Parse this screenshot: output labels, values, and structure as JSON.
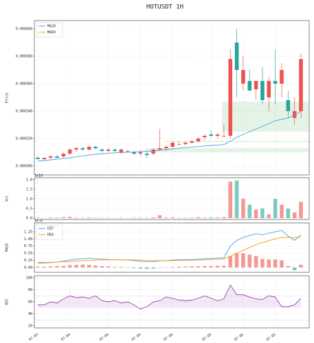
{
  "chart_data": [
    {
      "type": "candlestick",
      "title": "HOTUSDT  1H",
      "ylabel": "Price",
      "up_color": "#ef5350",
      "down_color": "#26a69a",
      "ylim": [
        0.0002935,
        0.000406
      ],
      "yticks": [
        {
          "value": 0.0003,
          "label": "0.000300"
        },
        {
          "value": 0.00032,
          "label": "0.000320"
        },
        {
          "value": 0.00034,
          "label": "0.000340"
        },
        {
          "value": 0.00036,
          "label": "0.000360"
        },
        {
          "value": 0.00038,
          "label": "0.000380"
        },
        {
          "value": 0.0004,
          "label": "0.000400"
        }
      ],
      "grid": true,
      "legend": "upper left",
      "ohlc": [
        [
          0.000306,
          0.000307,
          0.000305,
          0.000305
        ],
        [
          0.000305,
          0.000306,
          0.000304,
          0.000306
        ],
        [
          0.000306,
          0.000308,
          0.000305,
          0.000307
        ],
        [
          0.000307,
          0.000308,
          0.000306,
          0.000306
        ],
        [
          0.000307,
          0.00031,
          0.000306,
          0.000309
        ],
        [
          0.000309,
          0.000313,
          0.000308,
          0.000312
        ],
        [
          0.000312,
          0.000314,
          0.00031,
          0.000313
        ],
        [
          0.000313,
          0.000314,
          0.000311,
          0.000312
        ],
        [
          0.000312,
          0.000315,
          0.000311,
          0.000314
        ],
        [
          0.000314,
          0.000315,
          0.000312,
          0.000313
        ],
        [
          0.000312,
          0.000313,
          0.00031,
          0.000311
        ],
        [
          0.000311,
          0.000313,
          0.00031,
          0.000312
        ],
        [
          0.000312,
          0.000313,
          0.00031,
          0.000311
        ],
        [
          0.00031,
          0.000313,
          0.000309,
          0.000312
        ],
        [
          0.000311,
          0.000312,
          0.00031,
          0.000311
        ],
        [
          0.00031,
          0.000311,
          0.000308,
          0.000309
        ],
        [
          0.000309,
          0.000312,
          0.000307,
          0.00031
        ],
        [
          0.000309,
          0.00031,
          0.000306,
          0.000308
        ],
        [
          0.000309,
          0.000313,
          0.000308,
          0.000312
        ],
        [
          0.000312,
          0.000327,
          0.000311,
          0.000313
        ],
        [
          0.000313,
          0.000315,
          0.000311,
          0.000314
        ],
        [
          0.000314,
          0.000318,
          0.000313,
          0.000317
        ],
        [
          0.000316,
          0.000318,
          0.000315,
          0.000316
        ],
        [
          0.000316,
          0.000318,
          0.000315,
          0.000317
        ],
        [
          0.000317,
          0.000319,
          0.000316,
          0.000318
        ],
        [
          0.000318,
          0.000321,
          0.000317,
          0.00032
        ],
        [
          0.000321,
          0.000323,
          0.000319,
          0.000322
        ],
        [
          0.000323,
          0.000326,
          0.000321,
          0.000322
        ],
        [
          0.000322,
          0.000324,
          0.00032,
          0.000323
        ],
        [
          0.000322,
          0.00033,
          0.000321,
          0.000322
        ],
        [
          0.000322,
          0.000385,
          0.00032,
          0.000378
        ],
        [
          0.00039,
          0.0004,
          0.00035,
          0.00037
        ],
        [
          0.00036,
          0.00038,
          0.000355,
          0.00037
        ],
        [
          0.000362,
          0.00037,
          0.000355,
          0.000355
        ],
        [
          0.000356,
          0.000362,
          0.000348,
          0.000362
        ],
        [
          0.000362,
          0.000372,
          0.000345,
          0.000348
        ],
        [
          0.00035,
          0.000365,
          0.00034,
          0.000362
        ],
        [
          0.000362,
          0.000385,
          0.000345,
          0.00036
        ],
        [
          0.00036,
          0.000375,
          0.00035,
          0.00037
        ],
        [
          0.000348,
          0.000355,
          0.000335,
          0.00034
        ],
        [
          0.000335,
          0.00035,
          0.00033,
          0.00034
        ],
        [
          0.00034,
          0.000382,
          0.000335,
          0.000378
        ]
      ],
      "series": [
        {
          "name": "MA20",
          "color": "#4a9fdf",
          "values": [
            0.0003035,
            0.000304,
            0.0003045,
            0.000305,
            0.0003055,
            0.000306,
            0.0003068,
            0.0003074,
            0.000308,
            0.0003085,
            0.000309,
            0.0003093,
            0.0003096,
            0.0003098,
            0.00031,
            0.0003102,
            0.0003105,
            0.0003108,
            0.000311,
            0.0003115,
            0.000312,
            0.0003125,
            0.000313,
            0.0003134,
            0.0003138,
            0.0003142,
            0.0003146,
            0.000315,
            0.0003153,
            0.0003156,
            0.000318,
            0.000321,
            0.000323,
            0.000325,
            0.000327,
            0.000329,
            0.000331,
            0.000333,
            0.000334,
            0.000335,
            0.000337,
            0.00034
          ]
        },
        {
          "name": "MA60",
          "color": "#ff9800",
          "values": [
            null,
            null,
            null,
            null,
            null,
            null,
            null,
            null,
            null,
            null,
            null,
            null,
            null,
            null,
            null,
            null,
            null,
            null,
            null,
            null,
            null,
            null,
            null,
            null,
            null,
            null,
            null,
            null,
            null,
            null,
            null,
            null,
            null,
            null,
            null,
            null,
            null,
            null,
            null,
            null,
            null,
            null
          ]
        }
      ],
      "zones": [
        {
          "start": 29,
          "y": [
            0.000325,
            0.000347
          ]
        },
        {
          "start": 17,
          "y": [
            0.00031,
            0.000313
          ]
        },
        {
          "start": 20,
          "y": [
            0.0003175,
            0.0003185
          ]
        }
      ]
    },
    {
      "type": "bar",
      "ylabel": "Vol",
      "offset_label": "1e10",
      "ylim": [
        -0.07,
        2.1
      ],
      "yticks": [
        {
          "value": 0,
          "label": "0.0"
        },
        {
          "value": 0.5,
          "label": "0.5"
        },
        {
          "value": 1,
          "label": "1.0"
        },
        {
          "value": 1.5,
          "label": "1.5"
        },
        {
          "value": 2,
          "label": "2.0"
        }
      ],
      "grid": true,
      "values": [
        0.02,
        0.01,
        0.03,
        0.02,
        0.05,
        0.06,
        0.03,
        0.02,
        0.03,
        0.02,
        0.02,
        0.02,
        0.01,
        0.02,
        0.01,
        0.02,
        0.03,
        0.02,
        0.04,
        0.15,
        0.03,
        0.04,
        0.02,
        0.02,
        0.03,
        0.05,
        0.03,
        0.04,
        0.03,
        0.05,
        1.9,
        1.95,
        1.0,
        0.7,
        0.45,
        0.5,
        0.2,
        1.0,
        0.7,
        0.5,
        0.3,
        0.85
      ]
    },
    {
      "type": "macd",
      "ylabel": "MACD",
      "offset_label": "1e-6",
      "ylim": [
        -0.17,
        1.56
      ],
      "yticks": [
        {
          "value": 0,
          "label": "0.00"
        },
        {
          "value": 0.25,
          "label": "0.25"
        },
        {
          "value": 0.5,
          "label": "0.50"
        },
        {
          "value": 0.75,
          "label": "0.75"
        },
        {
          "value": 1,
          "label": "1.00"
        },
        {
          "value": 1.25,
          "label": "1.25"
        }
      ],
      "grid": true,
      "legend": "upper left",
      "series": [
        {
          "name": "DIF",
          "color": "#4a9fdf",
          "values": [
            0.15,
            0.16,
            0.17,
            0.19,
            0.22,
            0.26,
            0.29,
            0.31,
            0.32,
            0.31,
            0.29,
            0.28,
            0.27,
            0.27,
            0.26,
            0.24,
            0.22,
            0.2,
            0.2,
            0.23,
            0.24,
            0.26,
            0.27,
            0.27,
            0.28,
            0.29,
            0.31,
            0.32,
            0.33,
            0.34,
            0.75,
            0.95,
            1.05,
            1.12,
            1.18,
            1.15,
            1.2,
            1.25,
            1.3,
            1.1,
            0.95,
            1.15
          ]
        },
        {
          "name": "DEA",
          "color": "#ff9800",
          "values": [
            0.18,
            0.18,
            0.18,
            0.19,
            0.2,
            0.21,
            0.22,
            0.24,
            0.25,
            0.26,
            0.27,
            0.27,
            0.27,
            0.27,
            0.27,
            0.26,
            0.26,
            0.25,
            0.24,
            0.24,
            0.24,
            0.24,
            0.25,
            0.25,
            0.26,
            0.26,
            0.27,
            0.28,
            0.29,
            0.3,
            0.39,
            0.5,
            0.6,
            0.7,
            0.8,
            0.87,
            0.94,
            1.0,
            1.05,
            1.06,
            1.05,
            1.07
          ]
        }
      ],
      "hist": [
        0.03,
        0.03,
        0.04,
        0.05,
        0.06,
        0.08,
        0.09,
        0.1,
        0.09,
        0.07,
        0.05,
        0.04,
        0.02,
        0.02,
        0.01,
        -0.02,
        -0.04,
        -0.05,
        -0.04,
        -0.01,
        0.01,
        0.02,
        0.03,
        0.03,
        0.04,
        0.04,
        0.05,
        0.05,
        0.06,
        0.06,
        0.4,
        0.5,
        0.5,
        0.45,
        0.4,
        0.3,
        0.28,
        0.28,
        0.25,
        0.05,
        -0.1,
        0.1
      ],
      "up_color": "#ef5350",
      "down_color": "#26a69a"
    },
    {
      "type": "line",
      "ylabel": "RSI",
      "ylim": [
        16.5,
        103.5
      ],
      "yticks": [
        20,
        40,
        60,
        80,
        100
      ],
      "grid": true,
      "color": "#a040b8",
      "fill_base": 50,
      "bands": [
        30,
        70
      ],
      "values": [
        55,
        55,
        60,
        58,
        65,
        70,
        67,
        68,
        66,
        70,
        62,
        60,
        62,
        58,
        60,
        55,
        48,
        52,
        60,
        62,
        68,
        66,
        63,
        62,
        63,
        66,
        70,
        66,
        62,
        65,
        88,
        72,
        72,
        68,
        65,
        64,
        70,
        68,
        52,
        52,
        55,
        66
      ],
      "categories": [
        "07-03",
        null,
        null,
        null,
        null,
        "07-04",
        null,
        null,
        null,
        null,
        null,
        "07-04",
        null,
        null,
        null,
        null,
        "07-04",
        null,
        null,
        null,
        null,
        "07-04",
        null,
        null,
        null,
        null,
        null,
        "07-05",
        null,
        null,
        null,
        null,
        "07-05",
        null,
        null,
        null,
        null,
        "07-05",
        null,
        null,
        null,
        null
      ]
    }
  ]
}
